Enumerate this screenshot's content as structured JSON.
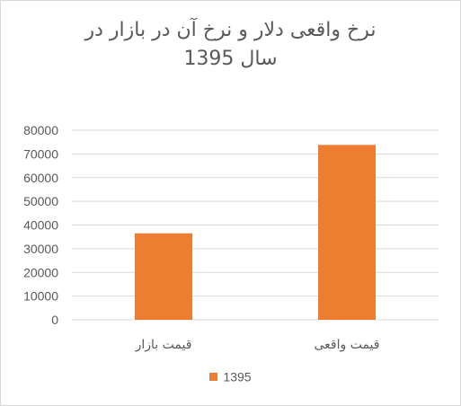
{
  "chart_data": {
    "type": "bar",
    "title_lines": [
      "نرخ واقعی دلار و نرخ آن در بازار در",
      "سال 1395"
    ],
    "categories": [
      "قیمت بازار",
      "قیمت واقعی"
    ],
    "series": [
      {
        "name": "1395",
        "values": [
          36500,
          73800
        ],
        "color": "#ed7d31"
      }
    ],
    "ylim": [
      0,
      80000
    ],
    "yticks": [
      0,
      10000,
      20000,
      30000,
      40000,
      50000,
      60000,
      70000,
      80000
    ],
    "grid": true,
    "legend": "bottom",
    "colors": {
      "gridline": "#d9d9d9",
      "text": "#595959"
    }
  }
}
